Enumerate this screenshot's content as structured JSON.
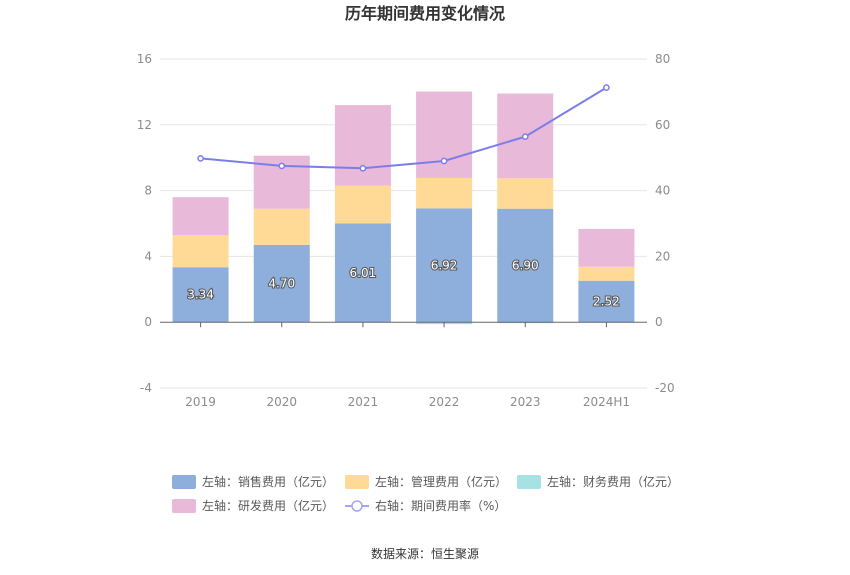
{
  "chart_data": {
    "type": "bar",
    "title": "历年期间费用变化情况",
    "categories": [
      "2019",
      "2020",
      "2021",
      "2022",
      "2023",
      "2024H1"
    ],
    "left_axis": {
      "ylim": [
        -4,
        16
      ],
      "ticks": [
        "-4",
        "0",
        "4",
        "8",
        "12",
        "16"
      ]
    },
    "right_axis": {
      "ylim": [
        -20,
        80
      ],
      "ticks": [
        "-20",
        "0",
        "20",
        "40",
        "60",
        "80"
      ]
    },
    "series": [
      {
        "name": "左轴：销售费用（亿元）",
        "axis": "left",
        "kind": "bar",
        "color": "#8eaedb",
        "values": [
          3.34,
          4.7,
          6.01,
          6.92,
          6.9,
          2.52
        ],
        "labels": [
          "3.34",
          "4.70",
          "6.01",
          "6.92",
          "6.90",
          "2.52"
        ]
      },
      {
        "name": "左轴：管理费用（亿元）",
        "axis": "left",
        "kind": "bar",
        "color": "#ffd996",
        "values": [
          1.96,
          2.2,
          2.3,
          1.85,
          1.85,
          0.85
        ]
      },
      {
        "name": "左轴：财务费用（亿元）",
        "axis": "left",
        "kind": "bar",
        "color": "#a6e1e3",
        "values": [
          0.0,
          0.0,
          0.0,
          -0.12,
          -0.05,
          0.0
        ]
      },
      {
        "name": "左轴：研发费用（亿元）",
        "axis": "left",
        "kind": "bar",
        "color": "#e8b9d9",
        "values": [
          2.3,
          3.22,
          4.89,
          5.25,
          5.15,
          2.3
        ]
      },
      {
        "name": "右轴：期间费用率（%）",
        "axis": "right",
        "kind": "line",
        "color": "#7b7ee8",
        "values": [
          49.8,
          47.5,
          46.8,
          49.0,
          56.4,
          71.3
        ]
      }
    ],
    "legend_position": "bottom"
  },
  "source": "数据来源：恒生聚源"
}
